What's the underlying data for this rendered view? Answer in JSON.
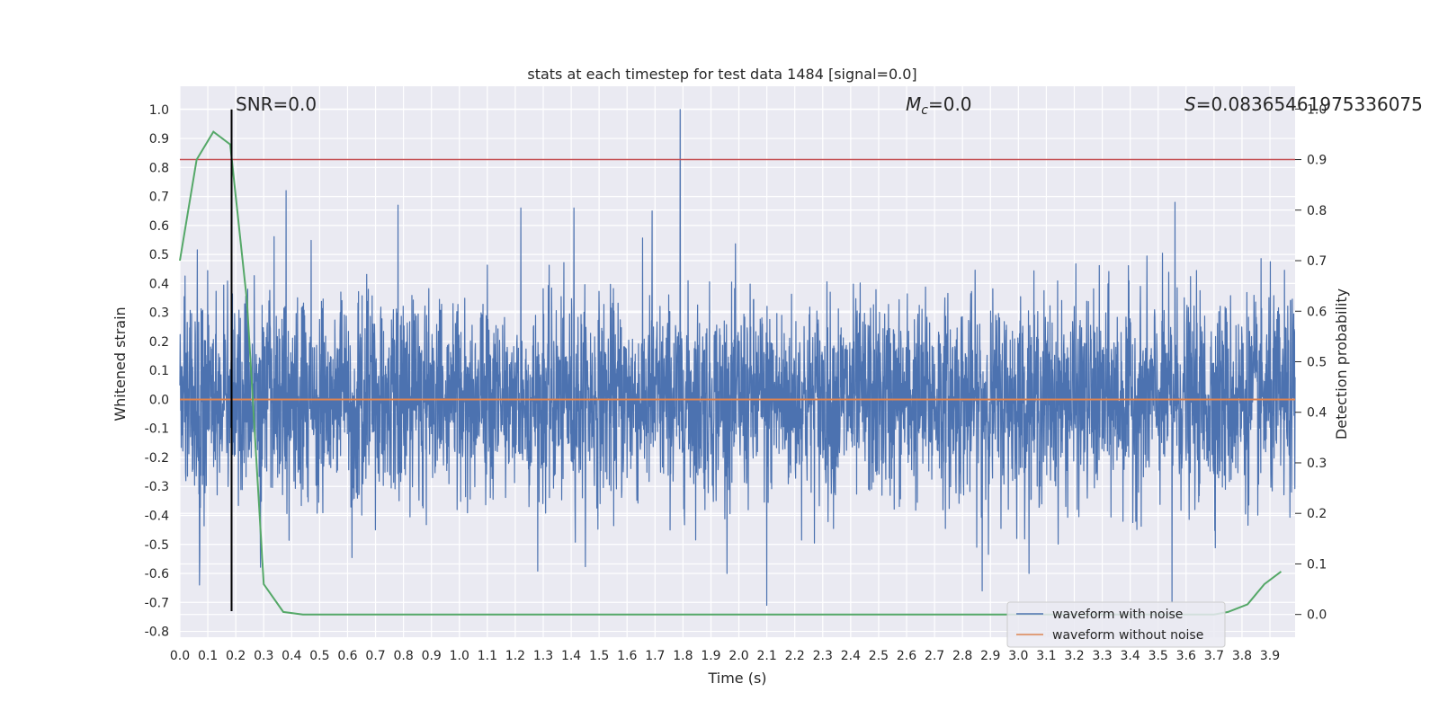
{
  "chart_data": {
    "type": "line",
    "title": "stats at each timestep for test data 1484 [signal=0.0]",
    "xlabel": "Time (s)",
    "ylabel_left": "Whitened strain",
    "ylabel_right": "Detection probability",
    "xlim": [
      0.0,
      3.99
    ],
    "ylim_left": [
      -0.82,
      1.08
    ],
    "ylim_right": [
      -0.045,
      1.045
    ],
    "x_ticks": [
      "0.0",
      "0.1",
      "0.2",
      "0.3",
      "0.4",
      "0.5",
      "0.6",
      "0.7",
      "0.8",
      "0.9",
      "1.0",
      "1.1",
      "1.2",
      "1.3",
      "1.4",
      "1.5",
      "1.6",
      "1.7",
      "1.8",
      "1.9",
      "2.0",
      "2.1",
      "2.2",
      "2.3",
      "2.4",
      "2.5",
      "2.6",
      "2.7",
      "2.8",
      "2.9",
      "3.0",
      "3.1",
      "3.2",
      "3.3",
      "3.4",
      "3.5",
      "3.6",
      "3.7",
      "3.8",
      "3.9"
    ],
    "y_ticks_left": [
      "-0.8",
      "-0.7",
      "-0.6",
      "-0.5",
      "-0.4",
      "-0.3",
      "-0.2",
      "-0.1",
      "0.0",
      "0.1",
      "0.2",
      "0.3",
      "0.4",
      "0.5",
      "0.6",
      "0.7",
      "0.8",
      "0.9",
      "1.0"
    ],
    "y_ticks_right": [
      "0.0",
      "0.1",
      "0.2",
      "0.3",
      "0.4",
      "0.5",
      "0.6",
      "0.7",
      "0.8",
      "0.9",
      "1.0"
    ],
    "grid": true,
    "legend_position": "lower-right",
    "legend": [
      "waveform with noise",
      "waveform without noise"
    ],
    "annotations": {
      "snr": "SNR=0.0",
      "mc_symbol": "M",
      "mc_sub": "c",
      "mc_value": "=0.0",
      "s_symbol": "S",
      "s_value": "=0.08365461975336075"
    },
    "colors": {
      "noise": "#4c72b0",
      "clean": "#dd8452",
      "probability": "#55a868",
      "threshold": "#c44e52",
      "marker": "#000000",
      "background": "#eaeaf2"
    },
    "series": [
      {
        "name": "waveform with noise",
        "axis": "left",
        "sample_count": 4096,
        "x_range": [
          0.0,
          3.99
        ],
        "approx_std": 0.17,
        "peaks": [
          {
            "x": 1.79,
            "y": 1.0
          },
          {
            "x": 0.38,
            "y": 0.72
          },
          {
            "x": 3.56,
            "y": 0.68
          },
          {
            "x": 0.78,
            "y": 0.67
          },
          {
            "x": 1.22,
            "y": 0.66
          },
          {
            "x": 1.41,
            "y": 0.66
          },
          {
            "x": 1.69,
            "y": 0.65
          },
          {
            "x": 2.1,
            "y": -0.71
          },
          {
            "x": 2.87,
            "y": -0.66
          },
          {
            "x": 0.07,
            "y": -0.64
          },
          {
            "x": 3.55,
            "y": -0.7
          }
        ]
      },
      {
        "name": "waveform without noise",
        "axis": "left",
        "x": [
          0.0,
          3.99
        ],
        "y": [
          0.0,
          0.0
        ]
      },
      {
        "name": "detection probability",
        "axis": "right",
        "x": [
          0.0,
          0.06,
          0.12,
          0.18,
          0.24,
          0.3,
          0.37,
          0.44,
          0.5,
          1.0,
          1.5,
          2.0,
          2.5,
          3.0,
          3.5,
          3.7,
          3.75,
          3.82,
          3.88,
          3.94
        ],
        "y": [
          0.7,
          0.9,
          0.955,
          0.93,
          0.62,
          0.06,
          0.005,
          0.0,
          0.0,
          0.0,
          0.0,
          0.0,
          0.0,
          0.0,
          0.0,
          0.0,
          0.005,
          0.02,
          0.06,
          0.085
        ]
      }
    ],
    "threshold_right": 0.9,
    "marker_x": 0.185,
    "marker_y_range": [
      -0.73,
      1.0
    ]
  }
}
